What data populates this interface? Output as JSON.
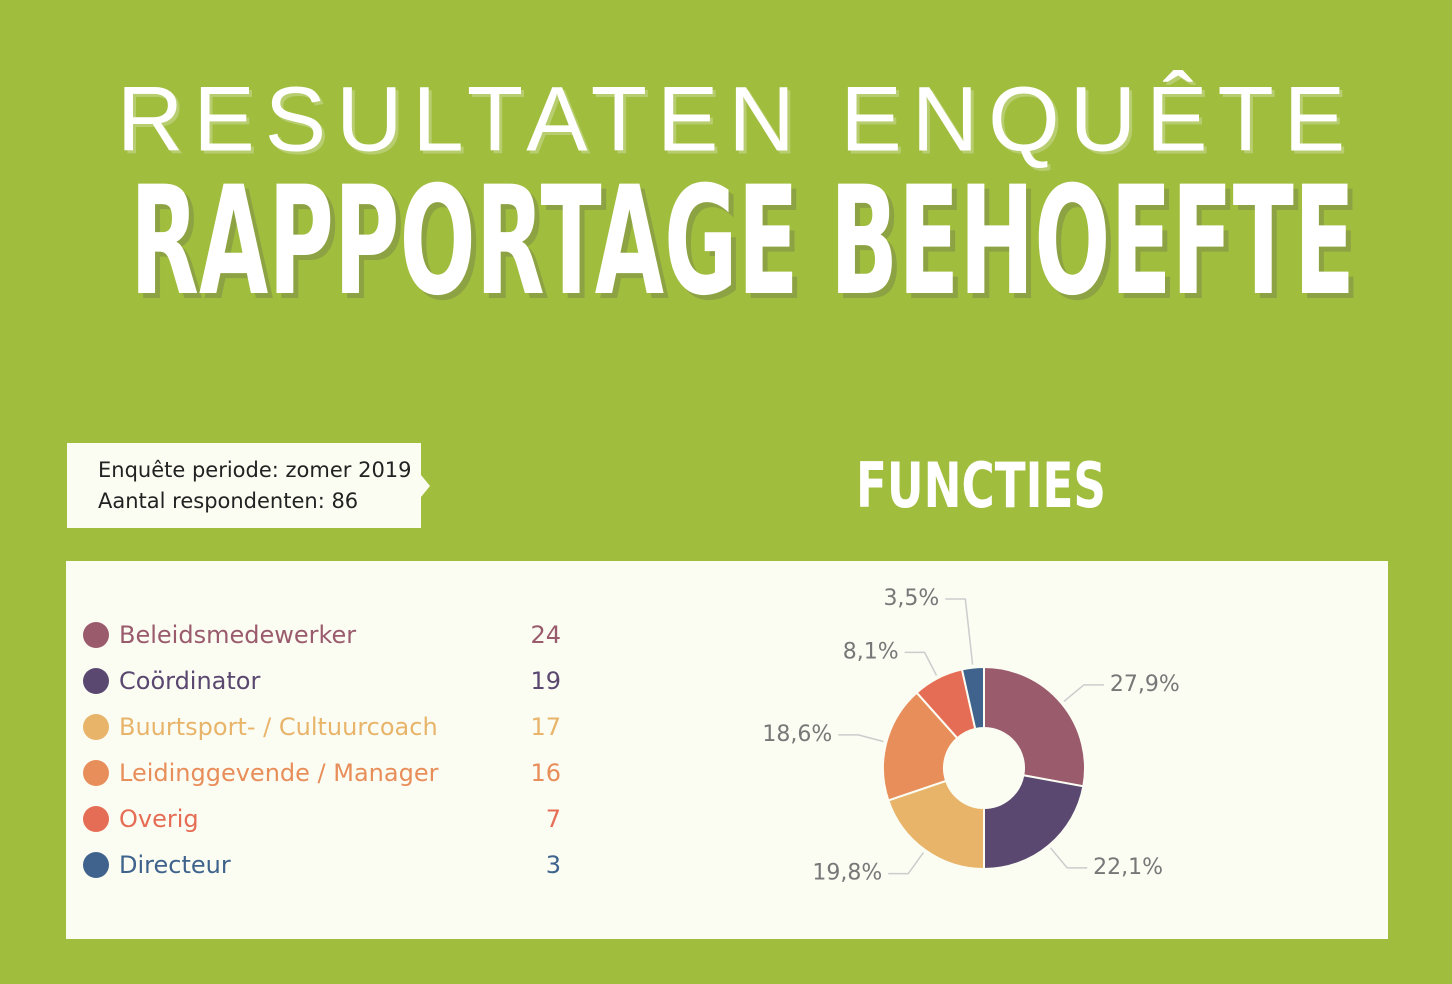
{
  "header": {
    "title": "RESULTATEN ENQUÊTE",
    "subtitle": "RAPPORTAGE BEHOEFTE"
  },
  "info": {
    "lines": [
      "Enquête periode: zomer 2019",
      "Aantal respondenten: 86"
    ]
  },
  "chart_data": {
    "type": "pie",
    "donut": true,
    "title": "FUNCTIES",
    "categories": [
      "Beleidsmedewerker",
      "Coördinator",
      "Buurtsport- / Cultuurcoach",
      "Leidinggevende / Manager",
      "Overig",
      "Directeur"
    ],
    "counts": [
      24,
      19,
      17,
      16,
      7,
      3
    ],
    "values": [
      27.9,
      22.1,
      19.8,
      18.6,
      8.1,
      3.5
    ],
    "value_labels": [
      "27,9%",
      "22,1%",
      "19,8%",
      "18,6%",
      "8,1%",
      "3,5%"
    ],
    "colors": [
      "#9a5b6c",
      "#5a4870",
      "#e8b46a",
      "#e88e5a",
      "#e66d55",
      "#3f638c"
    ]
  }
}
